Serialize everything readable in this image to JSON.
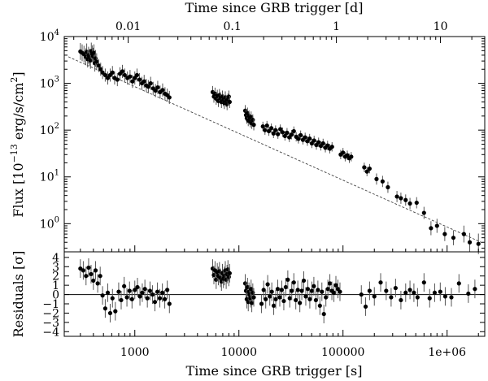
{
  "chart_data": {
    "type": "scatter",
    "title": "",
    "xlabel": "Time since GRB trigger [s]",
    "x2label": "Time since GRB trigger [d]",
    "xscale": "log",
    "xlim": [
      210,
      2300000
    ],
    "x_ticks": [
      {
        "value": 1000,
        "label": "1000"
      },
      {
        "value": 10000,
        "label": "10000"
      },
      {
        "value": 100000,
        "label": "100000"
      },
      {
        "value": 1000000,
        "label": "1e+06"
      }
    ],
    "x2_ticks": [
      {
        "value": 0.01,
        "label": "0.01"
      },
      {
        "value": 0.1,
        "label": "0.1"
      },
      {
        "value": 1,
        "label": "1"
      },
      {
        "value": 10,
        "label": "10"
      }
    ],
    "flux_panel": {
      "ylabel_main": "Flux [10",
      "ylabel_exp": "−13",
      "ylabel_units": " erg/s/cm",
      "ylabel_sup": "2",
      "ylabel_close": "]",
      "yscale": "log",
      "ylim": [
        0.25,
        10000
      ],
      "y_ticks": [
        {
          "value": 1,
          "base": "10",
          "exp": "0"
        },
        {
          "value": 10,
          "base": "10",
          "exp": "1"
        },
        {
          "value": 100,
          "base": "10",
          "exp": "2"
        },
        {
          "value": 1000,
          "base": "10",
          "exp": "3"
        },
        {
          "value": 10000,
          "base": "10",
          "exp": "4"
        }
      ],
      "model": {
        "name": "power-law fit",
        "amplitude_at_1000s": 850,
        "slope": -1.0
      },
      "points": [
        [
          300,
          4800,
          0.18
        ],
        [
          312,
          4500,
          0.18
        ],
        [
          325,
          4200,
          0.18
        ],
        [
          338,
          3700,
          0.18
        ],
        [
          345,
          4700,
          0.18
        ],
        [
          352,
          3300,
          0.18
        ],
        [
          360,
          4000,
          0.18
        ],
        [
          368,
          3600,
          0.18
        ],
        [
          375,
          3100,
          0.18
        ],
        [
          382,
          4900,
          0.18
        ],
        [
          390,
          4300,
          0.18
        ],
        [
          398,
          3800,
          0.18
        ],
        [
          405,
          4500,
          0.18
        ],
        [
          413,
          2700,
          0.18
        ],
        [
          420,
          3400,
          0.18
        ],
        [
          430,
          2900,
          0.18
        ],
        [
          450,
          2400,
          0.14
        ],
        [
          470,
          2000,
          0.14
        ],
        [
          490,
          1700,
          0.14
        ],
        [
          520,
          1500,
          0.14
        ],
        [
          550,
          1300,
          0.14
        ],
        [
          580,
          1500,
          0.14
        ],
        [
          610,
          1700,
          0.14
        ],
        [
          640,
          1300,
          0.14
        ],
        [
          680,
          1200,
          0.14
        ],
        [
          720,
          1600,
          0.14
        ],
        [
          760,
          1800,
          0.14
        ],
        [
          800,
          1500,
          0.14
        ],
        [
          850,
          1300,
          0.14
        ],
        [
          900,
          1400,
          0.14
        ],
        [
          950,
          1100,
          0.14
        ],
        [
          1000,
          1300,
          0.14
        ],
        [
          1050,
          1500,
          0.14
        ],
        [
          1110,
          1200,
          0.14
        ],
        [
          1170,
          1000,
          0.14
        ],
        [
          1230,
          1100,
          0.14
        ],
        [
          1290,
          900,
          0.14
        ],
        [
          1350,
          850,
          0.14
        ],
        [
          1420,
          1000,
          0.14
        ],
        [
          1500,
          780,
          0.14
        ],
        [
          1580,
          700,
          0.14
        ],
        [
          1660,
          820,
          0.14
        ],
        [
          1750,
          650,
          0.14
        ],
        [
          1850,
          720,
          0.14
        ],
        [
          1950,
          600,
          0.14
        ],
        [
          2050,
          560,
          0.14
        ],
        [
          2150,
          500,
          0.14
        ],
        [
          5600,
          650,
          0.13
        ],
        [
          5750,
          520,
          0.13
        ],
        [
          5900,
          600,
          0.13
        ],
        [
          6050,
          470,
          0.13
        ],
        [
          6200,
          540,
          0.13
        ],
        [
          6350,
          420,
          0.13
        ],
        [
          6500,
          560,
          0.13
        ],
        [
          6650,
          480,
          0.13
        ],
        [
          6800,
          400,
          0.13
        ],
        [
          6950,
          520,
          0.13
        ],
        [
          7100,
          440,
          0.13
        ],
        [
          7250,
          380,
          0.13
        ],
        [
          7400,
          500,
          0.13
        ],
        [
          7550,
          420,
          0.13
        ],
        [
          7700,
          360,
          0.13
        ],
        [
          7850,
          450,
          0.13
        ],
        [
          8000,
          520,
          0.13
        ],
        [
          8150,
          400,
          0.13
        ],
        [
          11500,
          260,
          0.12
        ],
        [
          11700,
          210,
          0.12
        ],
        [
          11900,
          180,
          0.12
        ],
        [
          12100,
          230,
          0.12
        ],
        [
          12300,
          160,
          0.12
        ],
        [
          12500,
          200,
          0.12
        ],
        [
          12700,
          170,
          0.12
        ],
        [
          12900,
          150,
          0.12
        ],
        [
          13100,
          190,
          0.12
        ],
        [
          13300,
          140,
          0.12
        ],
        [
          13600,
          165,
          0.12
        ],
        [
          13900,
          130,
          0.12
        ],
        [
          17000,
          120,
          0.1
        ],
        [
          17800,
          100,
          0.1
        ],
        [
          18600,
          125,
          0.1
        ],
        [
          19400,
          95,
          0.1
        ],
        [
          20500,
          110,
          0.1
        ],
        [
          21500,
          85,
          0.1
        ],
        [
          22500,
          100,
          0.1
        ],
        [
          23700,
          82,
          0.1
        ],
        [
          25000,
          105,
          0.1
        ],
        [
          26300,
          90,
          0.1
        ],
        [
          27700,
          75,
          0.1
        ],
        [
          29000,
          88,
          0.1
        ],
        [
          30500,
          70,
          0.1
        ],
        [
          32000,
          80,
          0.1
        ],
        [
          33700,
          95,
          0.1
        ],
        [
          35500,
          72,
          0.1
        ],
        [
          37300,
          65,
          0.1
        ],
        [
          39200,
          78,
          0.1
        ],
        [
          41200,
          62,
          0.1
        ],
        [
          43300,
          70,
          0.1
        ],
        [
          45500,
          58,
          0.1
        ],
        [
          47800,
          66,
          0.1
        ],
        [
          50200,
          52,
          0.1
        ],
        [
          52800,
          60,
          0.1
        ],
        [
          55500,
          48,
          0.1
        ],
        [
          58300,
          55,
          0.1
        ],
        [
          61300,
          46,
          0.1
        ],
        [
          64400,
          52,
          0.1
        ],
        [
          67700,
          42,
          0.1
        ],
        [
          71100,
          47,
          0.1
        ],
        [
          74700,
          40,
          0.1
        ],
        [
          78500,
          44,
          0.1
        ],
        [
          95000,
          30,
          0.1
        ],
        [
          100000,
          33,
          0.1
        ],
        [
          105000,
          27,
          0.1
        ],
        [
          110000,
          29,
          0.1
        ],
        [
          115000,
          25,
          0.1
        ],
        [
          120000,
          27,
          0.1
        ],
        [
          160000,
          16,
          0.1
        ],
        [
          170000,
          13,
          0.1
        ],
        [
          180000,
          15,
          0.1
        ],
        [
          210000,
          9,
          0.12
        ],
        [
          240000,
          8,
          0.12
        ],
        [
          270000,
          6,
          0.12
        ],
        [
          330000,
          3.8,
          0.12
        ],
        [
          360000,
          3.5,
          0.12
        ],
        [
          400000,
          3.2,
          0.12
        ],
        [
          440000,
          2.7,
          0.12
        ],
        [
          510000,
          2.8,
          0.12
        ],
        [
          600000,
          1.7,
          0.13
        ],
        [
          700000,
          0.8,
          0.15
        ],
        [
          800000,
          0.9,
          0.15
        ],
        [
          950000,
          0.6,
          0.15
        ],
        [
          1150000,
          0.5,
          0.16
        ],
        [
          1450000,
          0.6,
          0.18
        ],
        [
          1650000,
          0.4,
          0.2
        ],
        [
          2000000,
          0.37,
          0.22
        ]
      ]
    },
    "residual_panel": {
      "ylabel": "Residuals [σ]",
      "ylim": [
        -4.5,
        4.6
      ],
      "y_ticks": [
        {
          "value": 4,
          "label": "4"
        },
        {
          "value": 3,
          "label": "3"
        },
        {
          "value": 2,
          "label": "2"
        },
        {
          "value": 1,
          "label": "1"
        },
        {
          "value": 0,
          "label": "0"
        },
        {
          "value": -1,
          "label": "−1"
        },
        {
          "value": -2,
          "label": "−2"
        },
        {
          "value": -3,
          "label": "−3"
        },
        {
          "value": -4,
          "label": "−4"
        }
      ],
      "points": [
        [
          300,
          2.8
        ],
        [
          320,
          2.6
        ],
        [
          340,
          2.0
        ],
        [
          360,
          2.9
        ],
        [
          380,
          2.2
        ],
        [
          400,
          1.5
        ],
        [
          420,
          2.6
        ],
        [
          440,
          1.2
        ],
        [
          465,
          2.0
        ],
        [
          490,
          -0.1
        ],
        [
          520,
          -1.5
        ],
        [
          550,
          0.2
        ],
        [
          580,
          -2.0
        ],
        [
          610,
          -0.4
        ],
        [
          650,
          -1.8
        ],
        [
          700,
          0.3
        ],
        [
          740,
          -0.6
        ],
        [
          790,
          0.9
        ],
        [
          840,
          -0.3
        ],
        [
          890,
          0.4
        ],
        [
          940,
          -0.5
        ],
        [
          1000,
          0.5
        ],
        [
          1060,
          0.8
        ],
        [
          1120,
          -0.2
        ],
        [
          1180,
          0.2
        ],
        [
          1250,
          0.6
        ],
        [
          1320,
          -0.4
        ],
        [
          1400,
          0.4
        ],
        [
          1480,
          0.0
        ],
        [
          1560,
          -0.8
        ],
        [
          1650,
          0.3
        ],
        [
          1740,
          -0.4
        ],
        [
          1840,
          0.2
        ],
        [
          1940,
          -0.5
        ],
        [
          2050,
          0.5
        ],
        [
          2150,
          -1.0
        ],
        [
          5600,
          2.8
        ],
        [
          5750,
          2.1
        ],
        [
          5900,
          2.6
        ],
        [
          6050,
          1.6
        ],
        [
          6200,
          2.4
        ],
        [
          6350,
          2.0
        ],
        [
          6500,
          2.5
        ],
        [
          6650,
          1.8
        ],
        [
          6800,
          1.4
        ],
        [
          6950,
          2.3
        ],
        [
          7100,
          1.7
        ],
        [
          7250,
          2.0
        ],
        [
          7400,
          2.6
        ],
        [
          7550,
          1.6
        ],
        [
          7700,
          2.2
        ],
        [
          7850,
          2.7
        ],
        [
          8000,
          1.9
        ],
        [
          8150,
          2.3
        ],
        [
          11500,
          1.2
        ],
        [
          11700,
          0.4
        ],
        [
          11900,
          -0.5
        ],
        [
          12100,
          0.8
        ],
        [
          12300,
          -0.8
        ],
        [
          12500,
          0.3
        ],
        [
          12700,
          0.0
        ],
        [
          12900,
          -0.4
        ],
        [
          13100,
          0.6
        ],
        [
          13300,
          -0.9
        ],
        [
          13600,
          0.2
        ],
        [
          13900,
          -0.3
        ],
        [
          16500,
          -1.0
        ],
        [
          17300,
          0.5
        ],
        [
          18100,
          -0.5
        ],
        [
          18900,
          1.1
        ],
        [
          19800,
          -0.2
        ],
        [
          20700,
          0.3
        ],
        [
          21600,
          -1.2
        ],
        [
          22600,
          -0.5
        ],
        [
          23600,
          0.6
        ],
        [
          24700,
          -0.3
        ],
        [
          25800,
          0.5
        ],
        [
          27000,
          -0.7
        ],
        [
          28200,
          0.8
        ],
        [
          29500,
          1.6
        ],
        [
          30800,
          -0.4
        ],
        [
          32200,
          0.4
        ],
        [
          33700,
          1.3
        ],
        [
          35200,
          -0.6
        ],
        [
          36800,
          0.5
        ],
        [
          38500,
          -0.9
        ],
        [
          40200,
          0.4
        ],
        [
          42000,
          1.5
        ],
        [
          43900,
          -0.2
        ],
        [
          45900,
          0.6
        ],
        [
          48000,
          -0.5
        ],
        [
          50200,
          0.4
        ],
        [
          52500,
          0.9
        ],
        [
          54900,
          -0.6
        ],
        [
          57400,
          0.5
        ],
        [
          60000,
          -1.2
        ],
        [
          62700,
          0.3
        ],
        [
          65500,
          -2.1
        ],
        [
          68500,
          -0.3
        ],
        [
          71600,
          0.6
        ],
        [
          74800,
          1.2
        ],
        [
          78200,
          0.4
        ],
        [
          81800,
          0.2
        ],
        [
          85500,
          1.0
        ],
        [
          89400,
          0.6
        ],
        [
          93500,
          0.3
        ],
        [
          150000,
          0.0
        ],
        [
          165000,
          -1.3
        ],
        [
          180000,
          0.4
        ],
        [
          200000,
          -0.2
        ],
        [
          230000,
          1.3
        ],
        [
          260000,
          0.4
        ],
        [
          290000,
          -0.3
        ],
        [
          320000,
          0.7
        ],
        [
          360000,
          -0.6
        ],
        [
          400000,
          0.2
        ],
        [
          440000,
          0.5
        ],
        [
          480000,
          0.2
        ],
        [
          520000,
          -0.3
        ],
        [
          600000,
          1.3
        ],
        [
          680000,
          -0.4
        ],
        [
          760000,
          0.2
        ],
        [
          860000,
          0.3
        ],
        [
          960000,
          -0.2
        ],
        [
          1100000,
          -0.3
        ],
        [
          1300000,
          1.2
        ],
        [
          1600000,
          0.1
        ],
        [
          1850000,
          0.6
        ]
      ]
    }
  }
}
